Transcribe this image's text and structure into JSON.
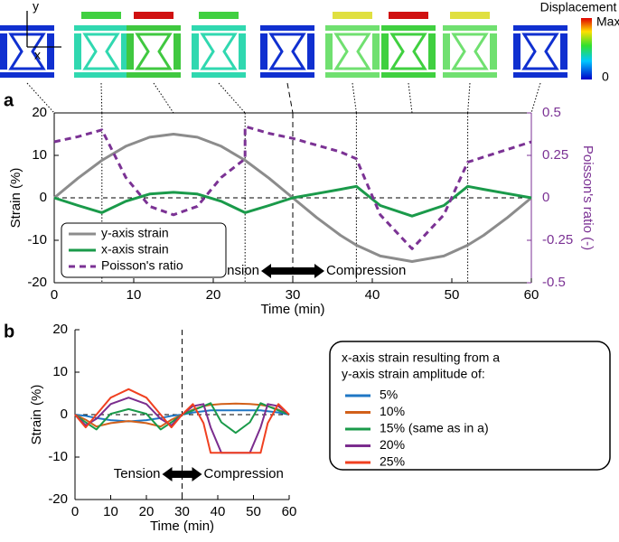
{
  "panel_labels": [
    "a",
    "b"
  ],
  "colorbar": {
    "title": "Displacement",
    "max_label": "Max",
    "min_label": "0"
  },
  "axis_glyph": {
    "y": "y",
    "x": "x"
  },
  "chart_data": [
    {
      "type": "line",
      "x_label": "Time (min)",
      "y_label": "Strain (%)",
      "y2_label": "Poisson's ratio (-)",
      "y2_color": "#7b3294",
      "xlim": [
        0,
        60
      ],
      "xticks": [
        0,
        10,
        20,
        30,
        40,
        50,
        60
      ],
      "ylim": [
        -20,
        20
      ],
      "yticks": [
        -20,
        -10,
        0,
        10,
        20
      ],
      "y2lim": [
        -0.5,
        0.5
      ],
      "y2ticks": [
        -0.5,
        -0.25,
        0,
        0.25,
        0.5
      ],
      "hline": 0,
      "vlines": [
        6,
        24,
        38,
        52
      ],
      "dashed_vline": 30,
      "connector_x": [
        0,
        6,
        15,
        24,
        30,
        38,
        45,
        52,
        60
      ],
      "annotations": [
        "Tension",
        "Compression"
      ],
      "x": [
        0,
        3,
        6,
        9,
        12,
        15,
        18,
        21,
        24,
        27,
        30,
        33,
        36,
        38,
        41,
        45,
        49,
        52,
        54,
        57,
        60
      ],
      "series": [
        {
          "name": "y-axis strain",
          "color": "#8c8c8c",
          "values": [
            0,
            4.64,
            8.82,
            12.14,
            14.27,
            15,
            14.27,
            12.14,
            8.82,
            4.64,
            0,
            -4.64,
            -8.82,
            -11.15,
            -13.7,
            -15,
            -13.7,
            -11.15,
            -8.82,
            -4.64,
            0
          ]
        },
        {
          "name": "x-axis strain",
          "color": "#1a9a4a",
          "values": [
            0,
            -1.8,
            -3.5,
            -0.8,
            0.9,
            1.3,
            0.9,
            -0.8,
            -3.5,
            -1.8,
            0,
            1.0,
            2.0,
            2.7,
            -1.8,
            -4.3,
            -1.8,
            2.7,
            2.0,
            1.0,
            0
          ]
        },
        {
          "name": "Poisson's ratio",
          "color": "#7b3294",
          "dash": true,
          "axis": "y2",
          "x": [
            0,
            3,
            6,
            9,
            12,
            15,
            18,
            21,
            24,
            24,
            27,
            30,
            33,
            36,
            38,
            41,
            45,
            49,
            52,
            56,
            60
          ],
          "values": [
            0.33,
            0.36,
            0.4,
            0.12,
            -0.05,
            -0.1,
            -0.05,
            0.12,
            0.23,
            0.42,
            0.38,
            0.35,
            0.31,
            0.27,
            0.23,
            -0.1,
            -0.3,
            -0.1,
            0.21,
            0.27,
            0.33
          ]
        }
      ]
    },
    {
      "type": "line",
      "x_label": "Time (min)",
      "y_label": "Strain (%)",
      "xlim": [
        0,
        60
      ],
      "xticks": [
        0,
        10,
        20,
        30,
        40,
        50,
        60
      ],
      "ylim": [
        -20,
        20
      ],
      "yticks": [
        -20,
        -10,
        0,
        10,
        20
      ],
      "hline": 0,
      "vlines": [],
      "dashed_vline": 30,
      "annotations": [
        "Tension",
        "Compression"
      ],
      "legend_title": [
        "x-axis strain resulting from a",
        "y-axis strain amplitude of:"
      ],
      "x": [
        0,
        3,
        6,
        10,
        15,
        20,
        24,
        27,
        30,
        33,
        36,
        38,
        41,
        45,
        49,
        52,
        54,
        57,
        60
      ],
      "series": [
        {
          "name": "5%",
          "color": "#1f77c4",
          "values": [
            0,
            -0.3,
            -0.8,
            -1.3,
            -1.6,
            -1.3,
            -0.8,
            -0.3,
            0,
            0.5,
            0.8,
            1.0,
            1.0,
            1.0,
            1.0,
            1.0,
            0.8,
            0.5,
            0
          ]
        },
        {
          "name": "10%",
          "color": "#d2601a",
          "values": [
            0,
            -1.2,
            -2.8,
            -2.0,
            -1.5,
            -2.0,
            -2.8,
            -1.2,
            0,
            1.2,
            2.0,
            2.3,
            2.5,
            2.6,
            2.5,
            2.3,
            2.0,
            1.2,
            0
          ]
        },
        {
          "name": "15% (same as in a)",
          "color": "#1a9a4a",
          "values": [
            0,
            -1.8,
            -3.5,
            0.2,
            1.3,
            0.2,
            -3.5,
            -1.8,
            0,
            1.0,
            2.0,
            2.7,
            -1.8,
            -4.3,
            -1.8,
            2.7,
            2.0,
            1.0,
            0
          ]
        },
        {
          "name": "20%",
          "color": "#7b2d8e",
          "values": [
            0,
            -2.5,
            -1,
            2.5,
            4,
            2.5,
            -1,
            -2.5,
            0,
            2,
            2.5,
            -3,
            -9,
            -9,
            -9,
            -3,
            2.5,
            2,
            0
          ]
        },
        {
          "name": "25%",
          "color": "#f04020",
          "values": [
            0,
            -3,
            0,
            4,
            6,
            4,
            0,
            -3,
            0,
            2.5,
            -2,
            -9,
            -9,
            -9,
            -9,
            -9,
            -2,
            2.5,
            0
          ]
        }
      ]
    }
  ]
}
